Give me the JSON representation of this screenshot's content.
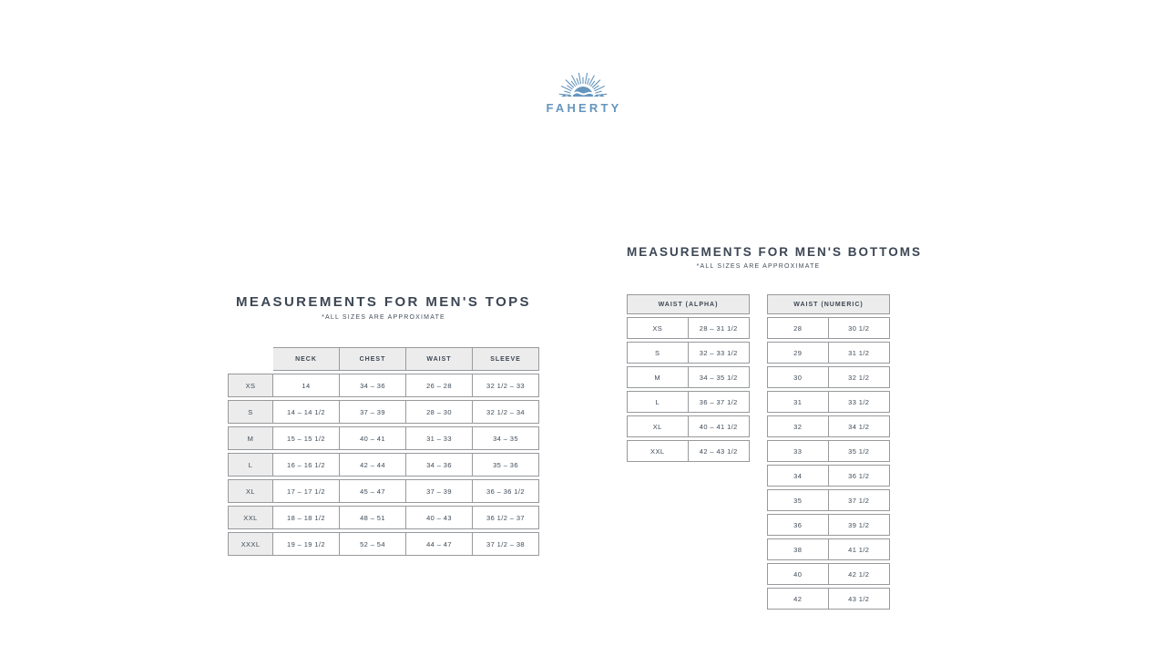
{
  "logo": {
    "wordmark": "FAHERTY",
    "color": "#6695bd"
  },
  "tops": {
    "title": "MEASUREMENTS FOR MEN'S TOPS",
    "subtitle": "*ALL SIZES ARE APPROXIMATE",
    "columns": [
      "NECK",
      "CHEST",
      "WAIST",
      "SLEEVE"
    ],
    "rows": [
      {
        "size": "XS",
        "values": [
          "14",
          "34 – 36",
          "26 – 28",
          "32 1/2 – 33"
        ]
      },
      {
        "size": "S",
        "values": [
          "14 – 14 1/2",
          "37 – 39",
          "28 – 30",
          "32 1/2 – 34"
        ]
      },
      {
        "size": "M",
        "values": [
          "15 – 15 1/2",
          "40 – 41",
          "31 – 33",
          "34 – 35"
        ]
      },
      {
        "size": "L",
        "values": [
          "16 – 16 1/2",
          "42 – 44",
          "34 – 36",
          "35 – 36"
        ]
      },
      {
        "size": "XL",
        "values": [
          "17 – 17 1/2",
          "45 – 47",
          "37 – 39",
          "36 – 36 1/2"
        ]
      },
      {
        "size": "XXL",
        "values": [
          "18 – 18 1/2",
          "48 – 51",
          "40 – 43",
          "36 1/2 – 37"
        ]
      },
      {
        "size": "XXXL",
        "values": [
          "19 – 19 1/2",
          "52 – 54",
          "44 – 47",
          "37 1/2 – 38"
        ]
      }
    ]
  },
  "bottoms": {
    "title": "MEASUREMENTS FOR MEN'S BOTTOMS",
    "subtitle": "*ALL SIZES ARE APPROXIMATE",
    "alpha": {
      "header": "WAIST (ALPHA)",
      "rows": [
        {
          "size": "XS",
          "value": "28 – 31 1/2"
        },
        {
          "size": "S",
          "value": "32 – 33 1/2"
        },
        {
          "size": "M",
          "value": "34 – 35 1/2"
        },
        {
          "size": "L",
          "value": "36 – 37 1/2"
        },
        {
          "size": "XL",
          "value": "40 – 41 1/2"
        },
        {
          "size": "XXL",
          "value": "42 – 43 1/2"
        }
      ]
    },
    "numeric": {
      "header": "WAIST (NUMERIC)",
      "rows": [
        {
          "size": "28",
          "value": "30 1/2"
        },
        {
          "size": "29",
          "value": "31 1/2"
        },
        {
          "size": "30",
          "value": "32 1/2"
        },
        {
          "size": "31",
          "value": "33 1/2"
        },
        {
          "size": "32",
          "value": "34 1/2"
        },
        {
          "size": "33",
          "value": "35 1/2"
        },
        {
          "size": "34",
          "value": "36 1/2"
        },
        {
          "size": "35",
          "value": "37 1/2"
        },
        {
          "size": "36",
          "value": "39 1/2"
        },
        {
          "size": "38",
          "value": "41 1/2"
        },
        {
          "size": "40",
          "value": "42 1/2"
        },
        {
          "size": "42",
          "value": "43 1/2"
        }
      ]
    }
  },
  "colors": {
    "text": "#3e4a57",
    "border": "#97999c",
    "header_bg": "#ececec",
    "logo_blue": "#6695bd"
  }
}
